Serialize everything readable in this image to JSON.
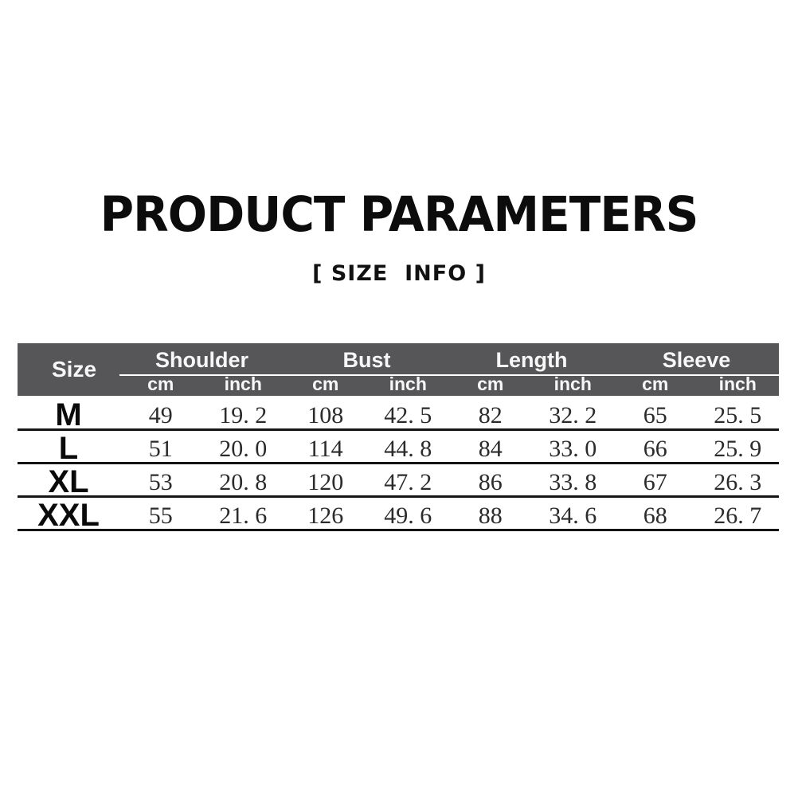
{
  "page": {
    "title": "PRODUCT PARAMETERS",
    "subtitle": "[ SIZE  INFO ]"
  },
  "table": {
    "size_header": "Size",
    "groups": [
      {
        "label": "Shoulder"
      },
      {
        "label": "Bust"
      },
      {
        "label": "Length"
      },
      {
        "label": "Sleeve"
      }
    ],
    "units": [
      "cm",
      "inch",
      "cm",
      "inch",
      "cm",
      "inch",
      "cm",
      "inch"
    ],
    "rows": [
      {
        "size": "M",
        "values": [
          "49",
          "19. 2",
          "108",
          "42. 5",
          "82",
          "32. 2",
          "65",
          "25. 5"
        ]
      },
      {
        "size": "L",
        "values": [
          "51",
          "20. 0",
          "114",
          "44. 8",
          "84",
          "33. 0",
          "66",
          "25. 9"
        ]
      },
      {
        "size": "XL",
        "values": [
          "53",
          "20. 8",
          "120",
          "47. 2",
          "86",
          "33. 8",
          "67",
          "26. 3"
        ]
      },
      {
        "size": "XXL",
        "values": [
          "55",
          "21. 6",
          "126",
          "49. 6",
          "88",
          "34. 6",
          "68",
          "26. 7"
        ]
      }
    ],
    "colors": {
      "header_bg": "#565659",
      "header_text": "#f7f7f7",
      "row_line": "#141414"
    }
  }
}
